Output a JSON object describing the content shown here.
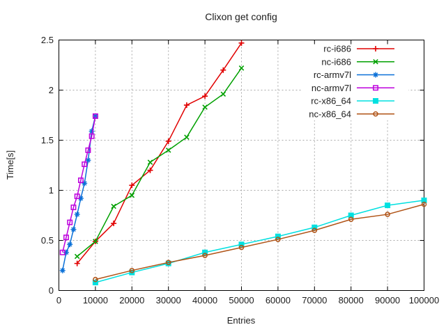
{
  "chart_data": {
    "type": "line",
    "title": "Clixon get config",
    "xlabel": "Entries",
    "ylabel": "Time[s]",
    "xlim": [
      0,
      100000
    ],
    "ylim": [
      0,
      2.5
    ],
    "grid": true,
    "legend_position": "top-right",
    "xticks": [
      0,
      10000,
      20000,
      30000,
      40000,
      50000,
      60000,
      70000,
      80000,
      90000,
      100000
    ],
    "xtick_labels": [
      "0",
      "10000",
      "20000",
      "30000",
      "40000",
      "50000",
      "60000",
      "70000",
      "80000",
      "90000",
      "100000"
    ],
    "yticks": [
      0,
      0.5,
      1,
      1.5,
      2,
      2.5
    ],
    "ytick_labels": [
      "0",
      "0.5",
      "1",
      "1.5",
      "2",
      "2.5"
    ],
    "series": [
      {
        "name": "rc-i686",
        "color": "#e10000",
        "marker": "plus",
        "x": [
          5000,
          10000,
          15000,
          20000,
          25000,
          30000,
          35000,
          40000,
          45000,
          50000
        ],
        "y": [
          0.27,
          0.49,
          0.67,
          1.05,
          1.2,
          1.49,
          1.85,
          1.94,
          2.2,
          2.47
        ]
      },
      {
        "name": "nc-i686",
        "color": "#00a000",
        "marker": "cross",
        "x": [
          5000,
          10000,
          15000,
          20000,
          25000,
          30000,
          35000,
          40000,
          45000,
          50000
        ],
        "y": [
          0.34,
          0.49,
          0.84,
          0.95,
          1.28,
          1.4,
          1.53,
          1.83,
          1.96,
          2.22
        ]
      },
      {
        "name": "rc-armv7l",
        "color": "#0a70d8",
        "marker": "asterisk",
        "x": [
          1000,
          2000,
          3000,
          4000,
          5000,
          6000,
          7000,
          8000,
          9000,
          10000
        ],
        "y": [
          0.2,
          0.38,
          0.46,
          0.61,
          0.76,
          0.92,
          1.07,
          1.3,
          1.59,
          1.74
        ]
      },
      {
        "name": "nc-armv7l",
        "color": "#bd00dd",
        "marker": "open-square",
        "x": [
          1000,
          2000,
          3000,
          4000,
          5000,
          6000,
          7000,
          8000,
          9000,
          10000
        ],
        "y": [
          0.38,
          0.53,
          0.68,
          0.83,
          0.94,
          1.1,
          1.26,
          1.4,
          1.54,
          1.74
        ]
      },
      {
        "name": "rc-x86_64",
        "color": "#00e0e0",
        "marker": "filled-square",
        "x": [
          10000,
          20000,
          30000,
          40000,
          50000,
          60000,
          70000,
          80000,
          90000,
          100000
        ],
        "y": [
          0.08,
          0.18,
          0.27,
          0.38,
          0.46,
          0.54,
          0.63,
          0.75,
          0.85,
          0.9
        ]
      },
      {
        "name": "nc-x86_64",
        "color": "#b05316",
        "marker": "open-circle",
        "x": [
          10000,
          20000,
          30000,
          40000,
          50000,
          60000,
          70000,
          80000,
          90000,
          100000
        ],
        "y": [
          0.11,
          0.2,
          0.28,
          0.35,
          0.43,
          0.51,
          0.6,
          0.71,
          0.76,
          0.86
        ]
      }
    ],
    "colors": {
      "grid": "#a8a8a8",
      "axis": "#000000",
      "text": "#1c1c1c",
      "background": "#ffffff"
    }
  }
}
